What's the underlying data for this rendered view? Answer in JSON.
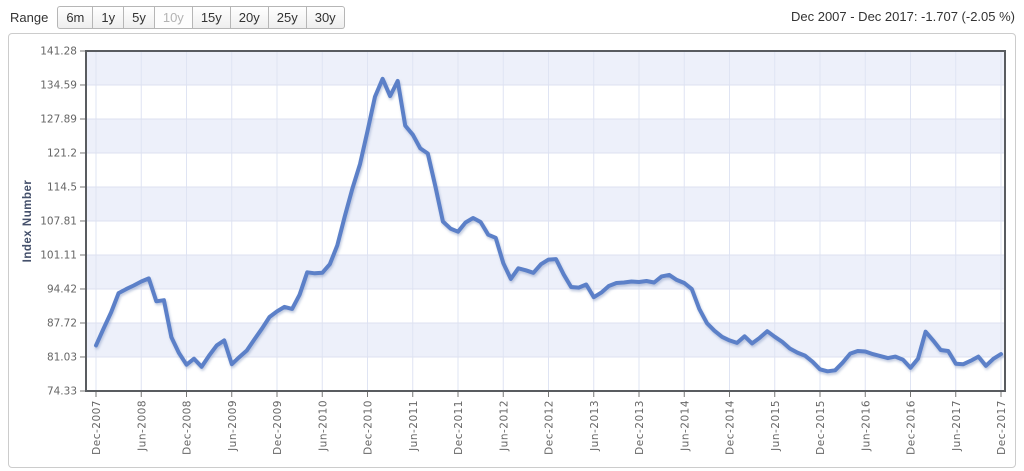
{
  "toolbar": {
    "range_label": "Range",
    "buttons": [
      {
        "label": "6m",
        "disabled": false
      },
      {
        "label": "1y",
        "disabled": false
      },
      {
        "label": "5y",
        "disabled": false
      },
      {
        "label": "10y",
        "disabled": true
      },
      {
        "label": "15y",
        "disabled": false
      },
      {
        "label": "20y",
        "disabled": false
      },
      {
        "label": "25y",
        "disabled": false
      },
      {
        "label": "30y",
        "disabled": false
      }
    ],
    "summary": "Dec 2007 - Dec 2017: -1.707 (-2.05 %)"
  },
  "chart_data": {
    "type": "line",
    "title": "",
    "ylabel": "Index Number",
    "xlabel": "",
    "ylim": [
      74.33,
      141.28
    ],
    "y_ticks": [
      141.28,
      134.59,
      127.89,
      121.2,
      114.5,
      107.81,
      101.11,
      94.42,
      87.72,
      81.03,
      74.33
    ],
    "x_tick_labels": [
      "Dec-2007",
      "Jun-2008",
      "Dec-2008",
      "Jun-2009",
      "Dec-2009",
      "Jun-2010",
      "Dec-2010",
      "Jun-2011",
      "Dec-2011",
      "Jun-2012",
      "Dec-2012",
      "Jun-2013",
      "Dec-2013",
      "Jun-2014",
      "Dec-2014",
      "Jun-2015",
      "Dec-2015",
      "Jun-2016",
      "Dec-2016",
      "Jun-2017",
      "Dec-2017"
    ],
    "x_tick_every_months": 6,
    "grid": {
      "band_colors": [
        "#edf0fa",
        "#ffffff"
      ],
      "h_line_color": "#dde1f0",
      "v_line_color": "#dfe4f3",
      "border_color": "#595c60"
    },
    "legend": "none",
    "series": [
      {
        "name": "Index Number",
        "color": "#5b80c8",
        "start_month": "Dec-2007",
        "end_month": "Dec-2017",
        "values": [
          83.3,
          86.6,
          89.8,
          93.6,
          94.4,
          95.1,
          95.9,
          96.5,
          92.0,
          92.2,
          84.9,
          81.8,
          79.5,
          80.7,
          79.1,
          81.3,
          83.3,
          84.3,
          79.6,
          81.0,
          82.3,
          84.5,
          86.6,
          88.9,
          90.0,
          90.9,
          90.5,
          93.3,
          97.7,
          97.5,
          97.6,
          99.3,
          103.0,
          108.8,
          114.2,
          119.0,
          125.5,
          132.3,
          135.8,
          132.4,
          135.4,
          126.6,
          124.8,
          122.1,
          121.1,
          114.6,
          107.7,
          106.3,
          105.7,
          107.5,
          108.4,
          107.6,
          105.1,
          104.5,
          99.5,
          96.4,
          98.5,
          98.1,
          97.6,
          99.3,
          100.2,
          100.3,
          97.3,
          94.8,
          94.7,
          95.3,
          92.8,
          93.7,
          95.0,
          95.6,
          95.7,
          95.9,
          95.8,
          96.0,
          95.7,
          96.9,
          97.2,
          96.2,
          95.6,
          94.4,
          90.5,
          87.7,
          86.2,
          85.0,
          84.3,
          83.8,
          85.1,
          83.7,
          84.8,
          86.1,
          85.0,
          84.0,
          82.7,
          81.9,
          81.3,
          80.1,
          78.6,
          78.2,
          78.4,
          79.9,
          81.7,
          82.2,
          82.1,
          81.6,
          81.2,
          80.8,
          81.1,
          80.5,
          78.9,
          80.7,
          86.0,
          84.3,
          82.4,
          82.2,
          79.7,
          79.6,
          80.3,
          81.1,
          79.3,
          80.7,
          81.6
        ]
      }
    ]
  },
  "style": {
    "tick_text_color": "#666666",
    "axis_title_color": "#44506b"
  }
}
